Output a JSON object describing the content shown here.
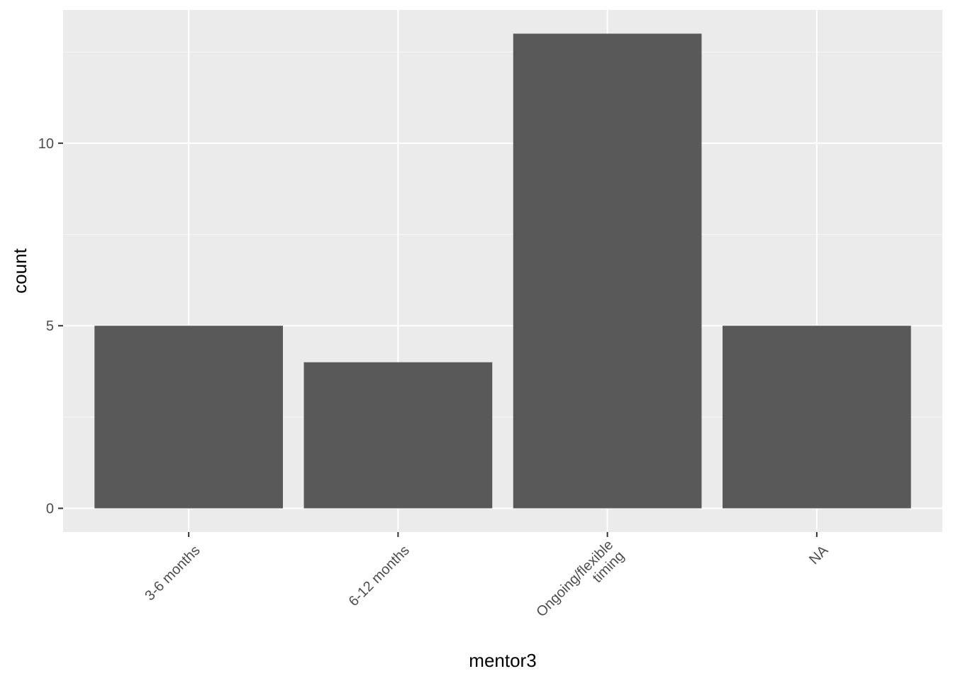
{
  "chart_data": {
    "type": "bar",
    "categories": [
      "3-6 months",
      "6-12 months",
      "Ongoing/flexible timing",
      "NA"
    ],
    "category_lines": [
      [
        "3-6 months"
      ],
      [
        "6-12 months"
      ],
      [
        "Ongoing/flexible",
        "timing"
      ],
      [
        "NA"
      ]
    ],
    "values": [
      5,
      4,
      13,
      5
    ],
    "xlabel": "mentor3",
    "ylabel": "count",
    "ylim": [
      -0.65,
      13.65
    ],
    "y_ticks": [
      0,
      5,
      10
    ],
    "y_minor_ticks": [
      2.5,
      7.5,
      12.5
    ],
    "grid": true,
    "x_tick_label_rotation_deg": -45,
    "colors": {
      "panel_background": "#ebebeb",
      "grid_major": "#ffffff",
      "grid_minor": "#f7f7f7",
      "bar_fill": "#595959",
      "tick_color": "#333333",
      "tick_label_color": "#4d4d4d",
      "axis_title_color": "#000000"
    }
  }
}
